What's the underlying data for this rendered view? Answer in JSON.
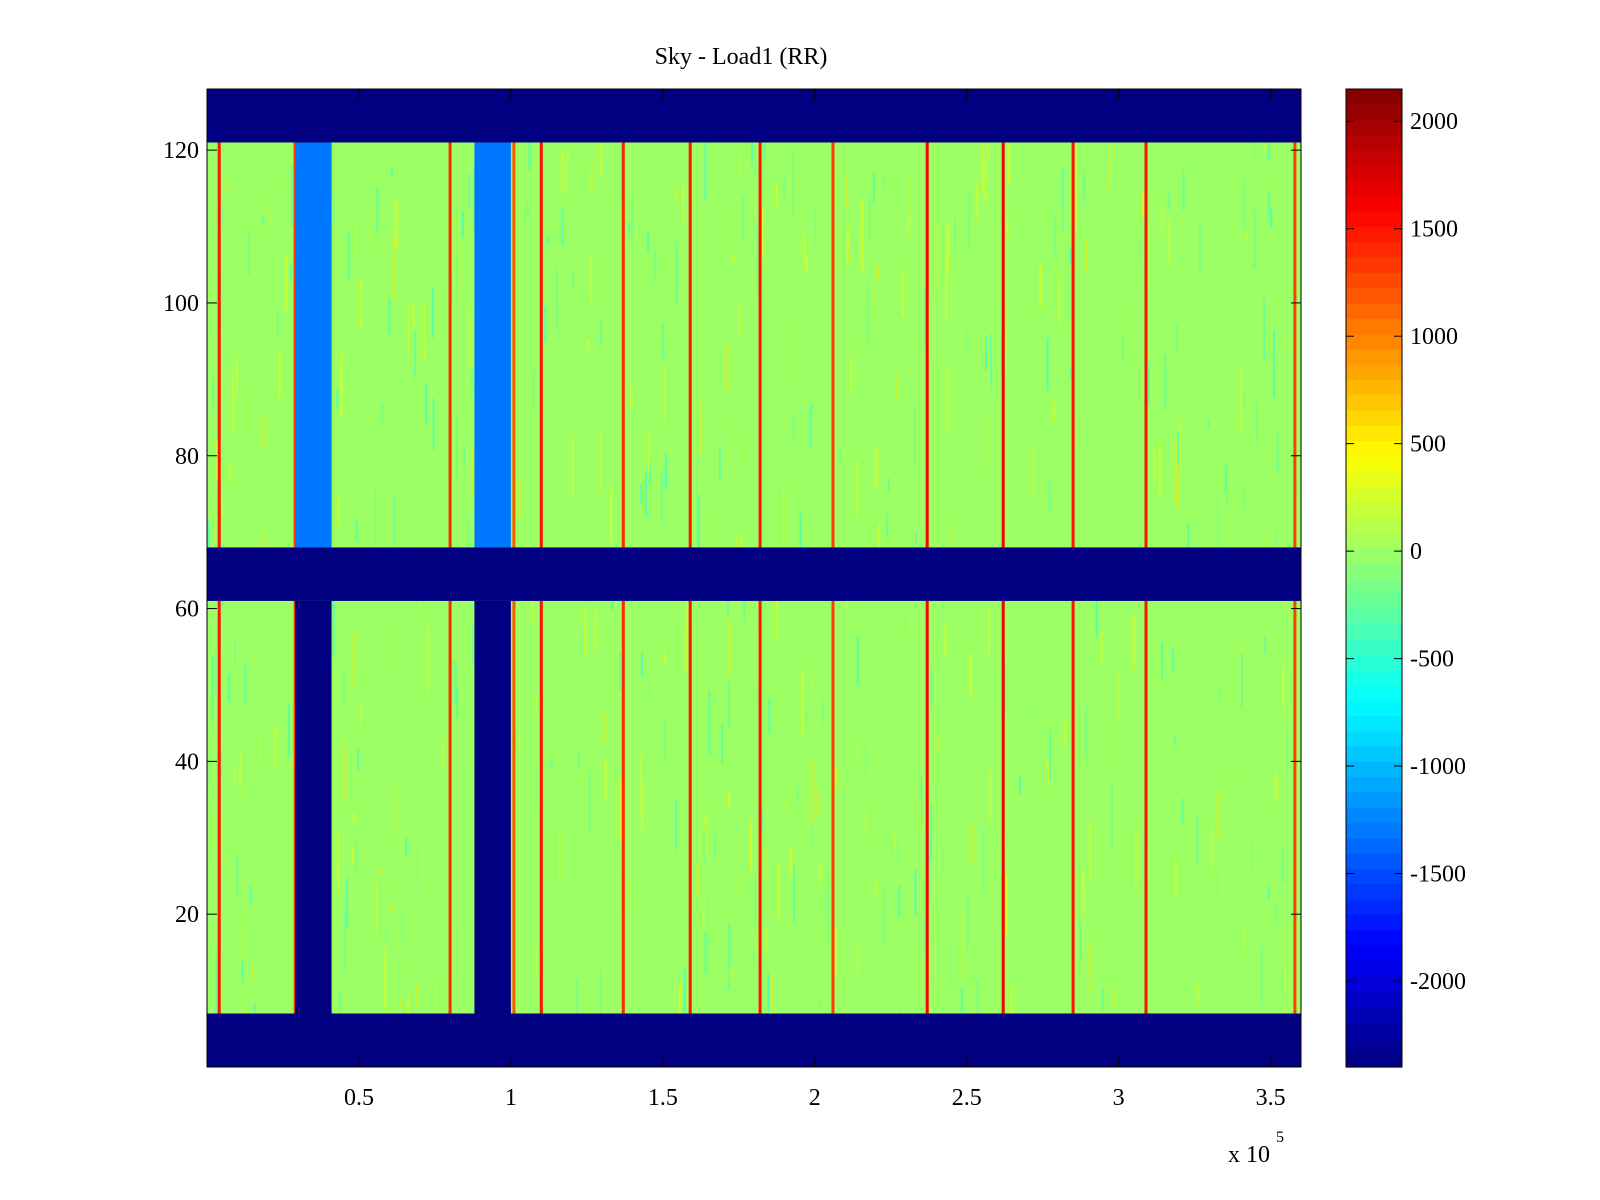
{
  "chart_data": {
    "type": "heatmap",
    "title": "Sky - Load1 (RR)",
    "colormap": "jet",
    "x_range": [
      0,
      360000
    ],
    "y_range": [
      0,
      128
    ],
    "x_multiplier_label": "x 10",
    "x_multiplier_exponent": "5",
    "x_ticks": [
      {
        "value": 50000,
        "label": "0.5"
      },
      {
        "value": 100000,
        "label": "1"
      },
      {
        "value": 150000,
        "label": "1.5"
      },
      {
        "value": 200000,
        "label": "2"
      },
      {
        "value": 250000,
        "label": "2.5"
      },
      {
        "value": 300000,
        "label": "3"
      },
      {
        "value": 350000,
        "label": "3.5"
      }
    ],
    "y_ticks": [
      {
        "value": 20,
        "label": "20"
      },
      {
        "value": 40,
        "label": "40"
      },
      {
        "value": 60,
        "label": "60"
      },
      {
        "value": 80,
        "label": "80"
      },
      {
        "value": 100,
        "label": "100"
      },
      {
        "value": 120,
        "label": "120"
      }
    ],
    "color_range": [
      -2400,
      2150
    ],
    "colorbar_ticks": [
      {
        "value": 2000,
        "label": "2000"
      },
      {
        "value": 1500,
        "label": "1500"
      },
      {
        "value": 1000,
        "label": "1000"
      },
      {
        "value": 500,
        "label": "500"
      },
      {
        "value": 0,
        "label": "0"
      },
      {
        "value": -500,
        "label": "-500"
      },
      {
        "value": -1000,
        "label": "-1000"
      },
      {
        "value": -1500,
        "label": "-1500"
      },
      {
        "value": -2000,
        "label": "-2000"
      }
    ],
    "background_value": 0,
    "masked_value": -2400,
    "masked_row_bands": [
      [
        0,
        7
      ],
      [
        61,
        68
      ],
      [
        121,
        128
      ]
    ],
    "masked_column_bands": [
      {
        "x": [
          29000,
          41000
        ],
        "y": [
          7,
          61
        ]
      },
      {
        "x": [
          88000,
          100000
        ],
        "y": [
          7,
          61
        ]
      }
    ],
    "cold_column_bands": [
      {
        "x": [
          29000,
          41000
        ],
        "y": [
          68,
          121
        ],
        "value": -1300
      },
      {
        "x": [
          88000,
          100000
        ],
        "y": [
          68,
          121
        ],
        "value": -1300
      }
    ],
    "hot_column_lines": [
      {
        "x": 4000,
        "value": 1500
      },
      {
        "x": 29000,
        "value": 1300
      },
      {
        "x": 80000,
        "value": 1400
      },
      {
        "x": 101000,
        "value": 1200
      },
      {
        "x": 110000,
        "value": 1500
      },
      {
        "x": 137000,
        "value": 1400
      },
      {
        "x": 159000,
        "value": 1500
      },
      {
        "x": 182000,
        "value": 1500
      },
      {
        "x": 206000,
        "value": 1300
      },
      {
        "x": 237000,
        "value": 1600
      },
      {
        "x": 262000,
        "value": 1600
      },
      {
        "x": 285000,
        "value": 1500
      },
      {
        "x": 309000,
        "value": 1500
      },
      {
        "x": 358000,
        "value": 1300
      }
    ]
  }
}
